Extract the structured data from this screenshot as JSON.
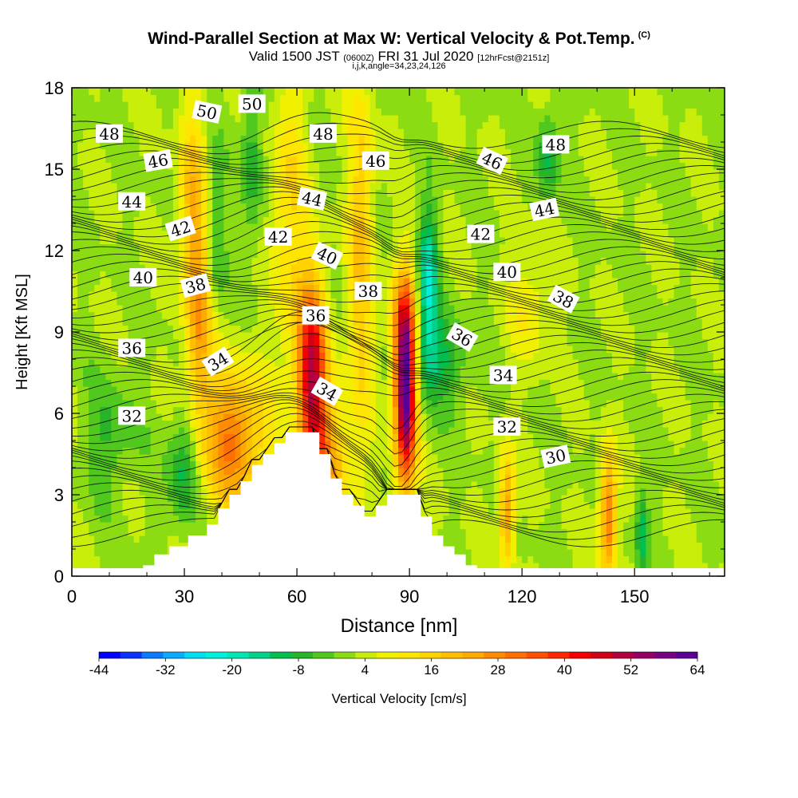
{
  "header": {
    "title_main": "Wind-Parallel Section at Max W: Vertical Velocity & Pot.Temp.",
    "title_mark": "(C)",
    "valid_a": "Valid 1500 JST",
    "valid_z": "(0600Z)",
    "valid_b": "FRI 31 Jul 2020",
    "valid_fcst": "[12hrFcst@2151z]",
    "indices": "i,j,k,angle=34,23,24,126"
  },
  "chart_data": {
    "type": "heatmap",
    "xlabel": "Distance [nm]",
    "ylabel": "Height [Kft MSL]",
    "xlim": [
      0,
      174
    ],
    "ylim": [
      0,
      18
    ],
    "xticks": [
      0,
      30,
      60,
      90,
      120,
      150
    ],
    "yticks": [
      0,
      3,
      6,
      9,
      12,
      15,
      18
    ],
    "colorbar": {
      "label": "Vertical Velocity [cm/s]",
      "min": -44,
      "max": 64,
      "tick_labels": [
        -44,
        -32,
        -20,
        -8,
        4,
        16,
        28,
        40,
        52,
        64
      ],
      "colors": [
        "#0000ff",
        "#0a32ff",
        "#0a78ff",
        "#0aaaff",
        "#00dcf0",
        "#00f0dc",
        "#00e6b4",
        "#00d28c",
        "#00be50",
        "#28b428",
        "#50c81e",
        "#8cdc14",
        "#c8ee0a",
        "#f0f000",
        "#ffe600",
        "#ffd200",
        "#ffbe00",
        "#ffaa00",
        "#ff8c00",
        "#ff6e00",
        "#ff5000",
        "#ff2800",
        "#f50000",
        "#d20014",
        "#b4003c",
        "#960064",
        "#780082",
        "#5a0096"
      ]
    },
    "terrain_heights_kft": [
      {
        "x": 0,
        "h": 0
      },
      {
        "x": 19,
        "h": 0.4
      },
      {
        "x": 22,
        "h": 0.8
      },
      {
        "x": 26,
        "h": 1.1
      },
      {
        "x": 31,
        "h": 1.5
      },
      {
        "x": 36,
        "h": 1.9
      },
      {
        "x": 39,
        "h": 2.5
      },
      {
        "x": 42,
        "h": 3.0
      },
      {
        "x": 45,
        "h": 3.5
      },
      {
        "x": 48,
        "h": 4.1
      },
      {
        "x": 51,
        "h": 4.5
      },
      {
        "x": 54,
        "h": 4.9
      },
      {
        "x": 57,
        "h": 5.3
      },
      {
        "x": 60,
        "h": 5.3
      },
      {
        "x": 63,
        "h": 5.3
      },
      {
        "x": 66,
        "h": 4.5
      },
      {
        "x": 69,
        "h": 3.6
      },
      {
        "x": 72,
        "h": 3.0
      },
      {
        "x": 75,
        "h": 2.6
      },
      {
        "x": 78,
        "h": 2.2
      },
      {
        "x": 81,
        "h": 2.6
      },
      {
        "x": 84,
        "h": 3.0
      },
      {
        "x": 87,
        "h": 3.0
      },
      {
        "x": 90,
        "h": 3.0
      },
      {
        "x": 93,
        "h": 2.2
      },
      {
        "x": 96,
        "h": 1.5
      },
      {
        "x": 99,
        "h": 1.1
      },
      {
        "x": 102,
        "h": 0.8
      },
      {
        "x": 105,
        "h": 0.4
      },
      {
        "x": 108,
        "h": 0
      }
    ],
    "velocity_features": [
      {
        "x": 89,
        "z": 6.8,
        "w": 64,
        "sx": 2.0,
        "sz": 2.4
      },
      {
        "x": 64,
        "z": 7.5,
        "w": 46,
        "sx": 2.7,
        "sz": 2.3
      },
      {
        "x": 88,
        "z": 9.2,
        "w": 18,
        "sx": 2.5,
        "sz": 1.4
      },
      {
        "x": 68,
        "z": 4.0,
        "w": 22,
        "sx": 4.0,
        "sz": 2.0
      },
      {
        "x": 43,
        "z": 5.0,
        "w": 28,
        "sx": 6.0,
        "sz": 1.8
      },
      {
        "x": 34,
        "z": 9.5,
        "w": 22,
        "sx": 2.5,
        "sz": 2.5
      },
      {
        "x": 32,
        "z": 14.0,
        "w": 16,
        "sx": 2.5,
        "sz": 2.6
      },
      {
        "x": 77,
        "z": 12.0,
        "w": 16,
        "sx": 2.5,
        "sz": 5.0
      },
      {
        "x": 58,
        "z": 13.0,
        "w": 12,
        "sx": 3.5,
        "sz": 4.0
      },
      {
        "x": 116,
        "z": 2.5,
        "w": 24,
        "sx": 1.4,
        "sz": 1.5
      },
      {
        "x": 143,
        "z": 2.2,
        "w": 30,
        "sx": 1.6,
        "sz": 1.6
      },
      {
        "x": 30,
        "z": 4.0,
        "w": -14,
        "sx": 3.0,
        "sz": 1.5
      },
      {
        "x": 95,
        "z": 11.0,
        "w": -22,
        "sx": 1.8,
        "sz": 1.8
      },
      {
        "x": 96,
        "z": 8.0,
        "w": -14,
        "sx": 6.0,
        "sz": 1.2
      },
      {
        "x": 38,
        "z": 12.5,
        "w": -10,
        "sx": 2.0,
        "sz": 2.0
      },
      {
        "x": 127,
        "z": 15.5,
        "w": -12,
        "sx": 2.0,
        "sz": 1.2
      },
      {
        "x": 48,
        "z": 15.5,
        "w": -10,
        "sx": 2.0,
        "sz": 2.5
      },
      {
        "x": 152,
        "z": 1.5,
        "w": -14,
        "sx": 1.2,
        "sz": 1.2
      },
      {
        "x": 10,
        "z": 5.2,
        "w": -8,
        "sx": 5.0,
        "sz": 1.5
      },
      {
        "x": 122,
        "z": 10.0,
        "w": 8,
        "sx": 4.0,
        "sz": 1.5
      }
    ],
    "isentropes_c": [
      30,
      32,
      34,
      36,
      38,
      40,
      42,
      44,
      46,
      48,
      50
    ],
    "isentrope_labels": [
      {
        "text": "48",
        "x": 10,
        "z": 16.3,
        "angle": 0
      },
      {
        "text": "50",
        "x": 36,
        "z": 17.1,
        "angle": 12
      },
      {
        "text": "50",
        "x": 48,
        "z": 17.4,
        "angle": 0
      },
      {
        "text": "48",
        "x": 67,
        "z": 16.3,
        "angle": 0
      },
      {
        "text": "46",
        "x": 23,
        "z": 15.3,
        "angle": -10
      },
      {
        "text": "46",
        "x": 81,
        "z": 15.3,
        "angle": 0
      },
      {
        "text": "46",
        "x": 112,
        "z": 15.3,
        "angle": 25
      },
      {
        "text": "48",
        "x": 129,
        "z": 15.9,
        "angle": 0
      },
      {
        "text": "44",
        "x": 16,
        "z": 13.8,
        "angle": 0
      },
      {
        "text": "44",
        "x": 64,
        "z": 13.9,
        "angle": 12
      },
      {
        "text": "44",
        "x": 126,
        "z": 13.5,
        "angle": -12
      },
      {
        "text": "42",
        "x": 29,
        "z": 12.8,
        "angle": -18
      },
      {
        "text": "42",
        "x": 55,
        "z": 12.5,
        "angle": 0
      },
      {
        "text": "42",
        "x": 109,
        "z": 12.6,
        "angle": 0
      },
      {
        "text": "40",
        "x": 19,
        "z": 11.0,
        "angle": 0
      },
      {
        "text": "40",
        "x": 68,
        "z": 11.8,
        "angle": 25
      },
      {
        "text": "40",
        "x": 116,
        "z": 11.2,
        "angle": 0
      },
      {
        "text": "38",
        "x": 33,
        "z": 10.7,
        "angle": -15
      },
      {
        "text": "38",
        "x": 79,
        "z": 10.5,
        "angle": 0
      },
      {
        "text": "38",
        "x": 131,
        "z": 10.2,
        "angle": 28
      },
      {
        "text": "36",
        "x": 16,
        "z": 8.4,
        "angle": 0
      },
      {
        "text": "36",
        "x": 65,
        "z": 9.6,
        "angle": 0
      },
      {
        "text": "36",
        "x": 104,
        "z": 8.8,
        "angle": 30
      },
      {
        "text": "34",
        "x": 39,
        "z": 7.9,
        "angle": -32
      },
      {
        "text": "34",
        "x": 68,
        "z": 6.8,
        "angle": 30
      },
      {
        "text": "34",
        "x": 115,
        "z": 7.4,
        "angle": 0
      },
      {
        "text": "32",
        "x": 16,
        "z": 5.9,
        "angle": 0
      },
      {
        "text": "32",
        "x": 116,
        "z": 5.5,
        "angle": 0
      },
      {
        "text": "30",
        "x": 129,
        "z": 4.4,
        "angle": -12
      }
    ]
  }
}
